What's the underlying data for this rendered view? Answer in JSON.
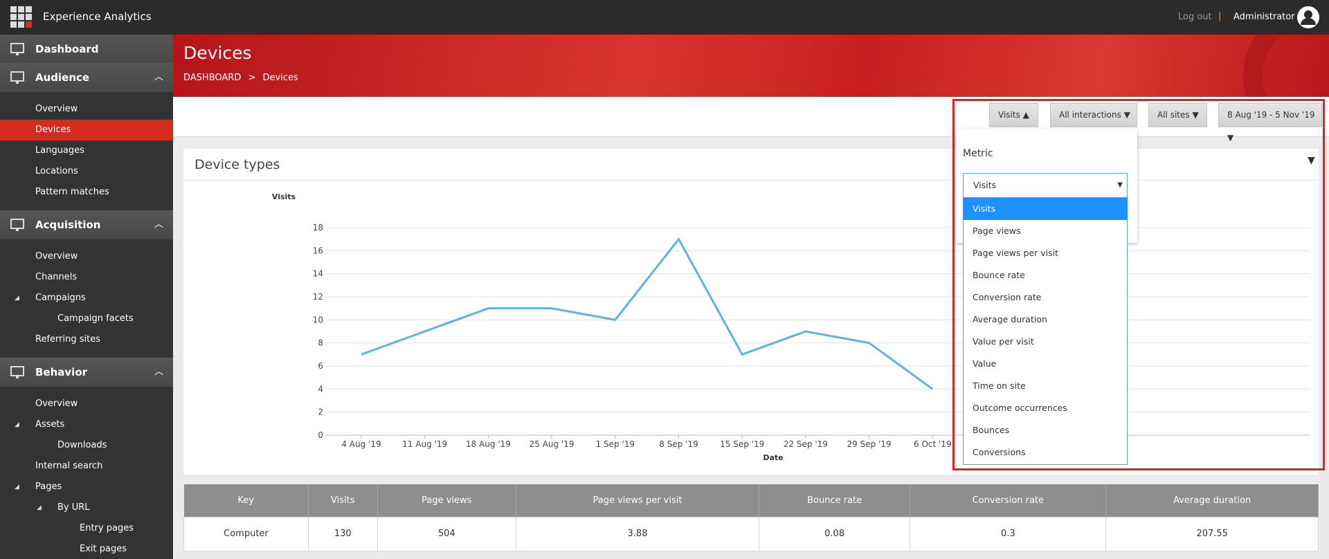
{
  "app": {
    "title": "Experience Analytics",
    "logout": "Log out",
    "separator": "|",
    "user": "Administrator"
  },
  "nav": [
    {
      "label": "Dashboard"
    },
    {
      "label": "Audience",
      "items": [
        {
          "label": "Overview"
        },
        {
          "label": "Devices",
          "active": true
        },
        {
          "label": "Languages"
        },
        {
          "label": "Locations"
        },
        {
          "label": "Pattern matches"
        }
      ]
    },
    {
      "label": "Acquisition",
      "items": [
        {
          "label": "Overview"
        },
        {
          "label": "Channels"
        },
        {
          "label": "Campaigns",
          "items": [
            {
              "label": "Campaign facets"
            }
          ]
        },
        {
          "label": "Referring sites"
        }
      ]
    },
    {
      "label": "Behavior",
      "items": [
        {
          "label": "Overview"
        },
        {
          "label": "Assets",
          "items": [
            {
              "label": "Downloads"
            }
          ]
        },
        {
          "label": "Internal search"
        },
        {
          "label": "Pages",
          "items": [
            {
              "label": "By URL",
              "items": [
                {
                  "label": "Entry pages"
                },
                {
                  "label": "Exit pages"
                }
              ]
            }
          ]
        }
      ]
    }
  ],
  "header": {
    "title": "Devices",
    "breadcrumb": [
      "DASHBOARD",
      "Devices"
    ],
    "breadcrumb_separator": ">"
  },
  "filters": [
    "Visits",
    "All interactions",
    "All sites",
    "8 Aug '19 - 5 Nov '19"
  ],
  "metric_dropdown": {
    "label": "Metric",
    "selected": "Visits",
    "options": [
      "Visits",
      "Page views",
      "Page views per visit",
      "Bounce rate",
      "Conversion rate",
      "Average duration",
      "Value per visit",
      "Value",
      "Time on site",
      "Outcome occurrences",
      "Bounces",
      "Conversions"
    ]
  },
  "chart": {
    "type": "line",
    "title": "Device types",
    "y_label": "Visits",
    "x_label": "Date",
    "categories": [
      "4 Aug '19",
      "11 Aug '19",
      "18 Aug '19",
      "25 Aug '19",
      "1 Sep '19",
      "8 Sep '19",
      "15 Sep '19",
      "22 Sep '19",
      "29 Sep '19",
      "6 Oct '19"
    ],
    "values": [
      7,
      9,
      11,
      11,
      10,
      17,
      7,
      9,
      8,
      4
    ],
    "color": "#5ab4e0",
    "ylim": [
      0,
      18
    ],
    "yticks": [
      0,
      2,
      4,
      6,
      8,
      10,
      12,
      14,
      16,
      18
    ],
    "grid": true
  },
  "table": {
    "columns": [
      "Key",
      "Visits",
      "Page views",
      "Page views per visit",
      "Bounce rate",
      "Conversion rate",
      "Average duration"
    ],
    "rows": [
      [
        "Computer",
        130,
        504,
        3.88,
        0.08,
        0.3,
        207.55
      ]
    ]
  }
}
